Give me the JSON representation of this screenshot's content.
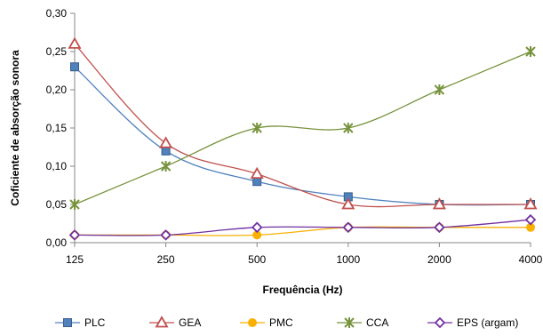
{
  "chart_data": {
    "type": "line",
    "xlabel": "Frequência (Hz)",
    "ylabel": "Coficiente de absorção sonora",
    "categories": [
      "125",
      "250",
      "500",
      "1000",
      "2000",
      "4000"
    ],
    "ylim": [
      0,
      0.3
    ],
    "yticks": [
      "0,00",
      "0,05",
      "0,10",
      "0,15",
      "0,20",
      "0,25",
      "0,30"
    ],
    "grid": false,
    "legend_position": "bottom",
    "series": [
      {
        "name": "PLC",
        "values": [
          0.23,
          0.12,
          0.08,
          0.06,
          0.05,
          0.05
        ],
        "color": "#4F81BD",
        "marker": "square"
      },
      {
        "name": "GEA",
        "values": [
          0.26,
          0.13,
          0.09,
          0.05,
          0.05,
          0.05
        ],
        "color": "#C0504D",
        "marker": "triangle"
      },
      {
        "name": "PMC",
        "values": [
          0.01,
          0.01,
          0.01,
          0.02,
          0.02,
          0.02
        ],
        "color": "#F9B000",
        "marker": "circle"
      },
      {
        "name": "CCA",
        "values": [
          0.05,
          0.1,
          0.15,
          0.15,
          0.2,
          0.25
        ],
        "color": "#77933C",
        "marker": "star"
      },
      {
        "name": "EPS (argam)",
        "values": [
          0.01,
          0.01,
          0.02,
          0.02,
          0.02,
          0.03
        ],
        "color": "#7030A0",
        "marker": "diamond"
      }
    ]
  }
}
